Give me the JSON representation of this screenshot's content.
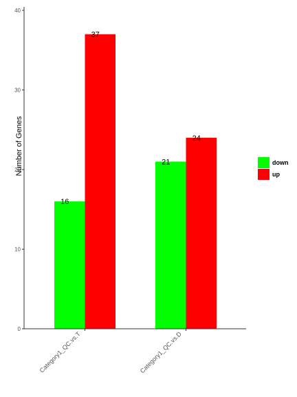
{
  "chart_data": {
    "type": "bar",
    "title": "",
    "xlabel": "",
    "ylabel": "Number of Genes",
    "ylim": [
      0,
      40
    ],
    "yticks": [
      0,
      10,
      20,
      30,
      40
    ],
    "grid": false,
    "legend_position": "right",
    "categories": [
      "Category1_QC.vs.T",
      "Category1_QC.vs.D"
    ],
    "series": [
      {
        "name": "down",
        "color": "#00ff00",
        "values": [
          16,
          21
        ]
      },
      {
        "name": "up",
        "color": "#ff0000",
        "values": [
          37,
          24
        ]
      }
    ]
  }
}
